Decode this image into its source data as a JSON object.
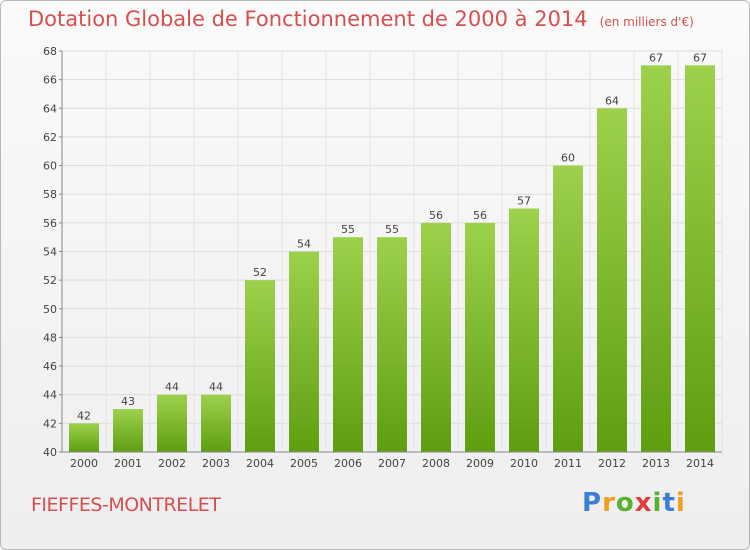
{
  "title": "Dotation Globale de Fonctionnement de 2000 à 2014",
  "subtitle": "(en milliers d'€)",
  "place": "FIEFFES-MONTRELET",
  "logo": "Proxiti",
  "colors": {
    "title": "#d64f4f",
    "bar_light": "#9dd14c",
    "bar_dark": "#5f9e10",
    "grid": "#dddddd"
  },
  "chart_data": {
    "type": "bar",
    "title": "Dotation Globale de Fonctionnement de 2000 à 2014",
    "subtitle": "(en milliers d'€)",
    "categories": [
      "2000",
      "2001",
      "2002",
      "2003",
      "2004",
      "2005",
      "2006",
      "2007",
      "2008",
      "2009",
      "2010",
      "2011",
      "2012",
      "2013",
      "2014"
    ],
    "values": [
      42,
      43,
      44,
      44,
      52,
      54,
      55,
      55,
      56,
      56,
      57,
      60,
      64,
      67,
      67
    ],
    "ylim": [
      40,
      68
    ],
    "yticks": [
      40,
      42,
      44,
      46,
      48,
      50,
      52,
      54,
      56,
      58,
      60,
      62,
      64,
      66,
      68
    ],
    "grid": true,
    "data_labels": true
  }
}
